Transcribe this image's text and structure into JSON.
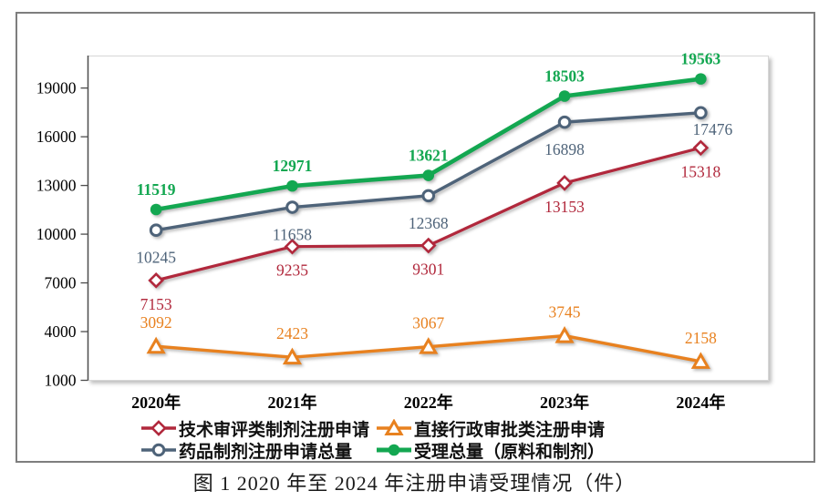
{
  "figure": {
    "caption": "图 1  2020 年至 2024 年注册申请受理情况（件）"
  },
  "chart_data": {
    "type": "line",
    "title": "",
    "xlabel": "",
    "ylabel": "",
    "categories": [
      "2020年",
      "2021年",
      "2022年",
      "2023年",
      "2024年"
    ],
    "series": [
      {
        "name": "技术审评类制剂注册申请",
        "values": [
          7153,
          9235,
          9301,
          13153,
          15318
        ],
        "color": "#b1283c",
        "marker": "open-diamond",
        "label_position": "below",
        "label_bold": false
      },
      {
        "name": "直接行政审批类注册申请",
        "values": [
          3092,
          2423,
          3067,
          3745,
          2158
        ],
        "color": "#e8811f",
        "marker": "open-triangle",
        "label_position": "above",
        "label_bold": false
      },
      {
        "name": "药品制剂注册申请总量",
        "values": [
          10245,
          11658,
          12368,
          16898,
          17476
        ],
        "color": "#4e6379",
        "marker": "open-circle",
        "label_position": "below",
        "label_bold": false
      },
      {
        "name": "受理总量（原料和制剂）",
        "values": [
          11519,
          12971,
          13621,
          18503,
          19563
        ],
        "color": "#13a751",
        "marker": "filled-circle",
        "label_position": "above",
        "label_bold": true
      }
    ],
    "y_ticks": [
      1000,
      4000,
      7000,
      10000,
      13000,
      16000,
      19000
    ],
    "ylim": [
      1000,
      21000
    ],
    "grid": false,
    "legend_position": "bottom",
    "data_labels_shown": true
  }
}
